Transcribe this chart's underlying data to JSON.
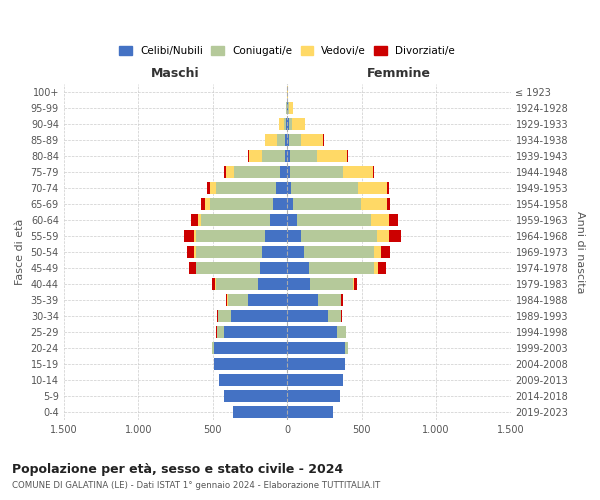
{
  "age_groups": [
    "100+",
    "95-99",
    "90-94",
    "85-89",
    "80-84",
    "75-79",
    "70-74",
    "65-69",
    "60-64",
    "55-59",
    "50-54",
    "45-49",
    "40-44",
    "35-39",
    "30-34",
    "25-29",
    "20-24",
    "15-19",
    "10-14",
    "5-9",
    "0-4"
  ],
  "birth_years": [
    "≤ 1923",
    "1924-1928",
    "1929-1933",
    "1934-1938",
    "1939-1943",
    "1944-1948",
    "1949-1953",
    "1954-1958",
    "1959-1963",
    "1964-1968",
    "1969-1973",
    "1974-1978",
    "1979-1983",
    "1984-1988",
    "1989-1993",
    "1994-1998",
    "1999-2003",
    "2004-2008",
    "2009-2013",
    "2014-2018",
    "2019-2023"
  ],
  "colors": {
    "celibi": "#4472c4",
    "coniugati": "#b5c99a",
    "vedovi": "#ffd966",
    "divorziati": "#cc0000"
  },
  "maschi": {
    "celibi": [
      2,
      3,
      5,
      12,
      18,
      45,
      75,
      95,
      115,
      150,
      170,
      185,
      195,
      265,
      375,
      425,
      490,
      490,
      455,
      425,
      365
    ],
    "coniugati": [
      0,
      3,
      15,
      55,
      150,
      310,
      400,
      425,
      465,
      465,
      445,
      425,
      285,
      135,
      88,
      48,
      14,
      4,
      2,
      0,
      0
    ],
    "vedovi": [
      0,
      5,
      35,
      80,
      90,
      58,
      43,
      33,
      18,
      13,
      9,
      4,
      2,
      1,
      1,
      1,
      1,
      0,
      0,
      0,
      0
    ],
    "divorziati": [
      0,
      0,
      0,
      2,
      4,
      8,
      18,
      28,
      50,
      62,
      52,
      48,
      22,
      8,
      4,
      1,
      0,
      0,
      0,
      0,
      0
    ]
  },
  "femmine": {
    "celibi": [
      2,
      5,
      10,
      12,
      18,
      22,
      28,
      38,
      65,
      95,
      115,
      145,
      155,
      205,
      275,
      335,
      385,
      385,
      375,
      355,
      305
    ],
    "coniugati": [
      0,
      5,
      20,
      80,
      185,
      355,
      445,
      455,
      495,
      505,
      465,
      435,
      285,
      155,
      88,
      58,
      22,
      4,
      1,
      0,
      0
    ],
    "vedovi": [
      5,
      30,
      92,
      150,
      198,
      198,
      195,
      175,
      125,
      85,
      52,
      28,
      8,
      4,
      1,
      1,
      1,
      0,
      0,
      0,
      0
    ],
    "divorziati": [
      0,
      0,
      0,
      2,
      4,
      8,
      18,
      22,
      62,
      78,
      58,
      58,
      18,
      12,
      4,
      1,
      0,
      0,
      0,
      0,
      0
    ]
  },
  "title": "Popolazione per età, sesso e stato civile - 2024",
  "subtitle": "COMUNE DI GALATINA (LE) - Dati ISTAT 1° gennaio 2024 - Elaborazione TUTTITALIA.IT",
  "xlabel_left": "Maschi",
  "xlabel_right": "Femmine",
  "ylabel_left": "Fasce di età",
  "ylabel_right": "Anni di nascita",
  "xlim": 1500,
  "xtick_vals": [
    -1500,
    -1000,
    -500,
    0,
    500,
    1000,
    1500
  ],
  "xtick_labels": [
    "1.500",
    "1.000",
    "500",
    "0",
    "500",
    "1.000",
    "1.500"
  ],
  "legend_labels": [
    "Celibi/Nubili",
    "Coniugati/e",
    "Vedovi/e",
    "Divorziati/e"
  ],
  "background_color": "#ffffff"
}
